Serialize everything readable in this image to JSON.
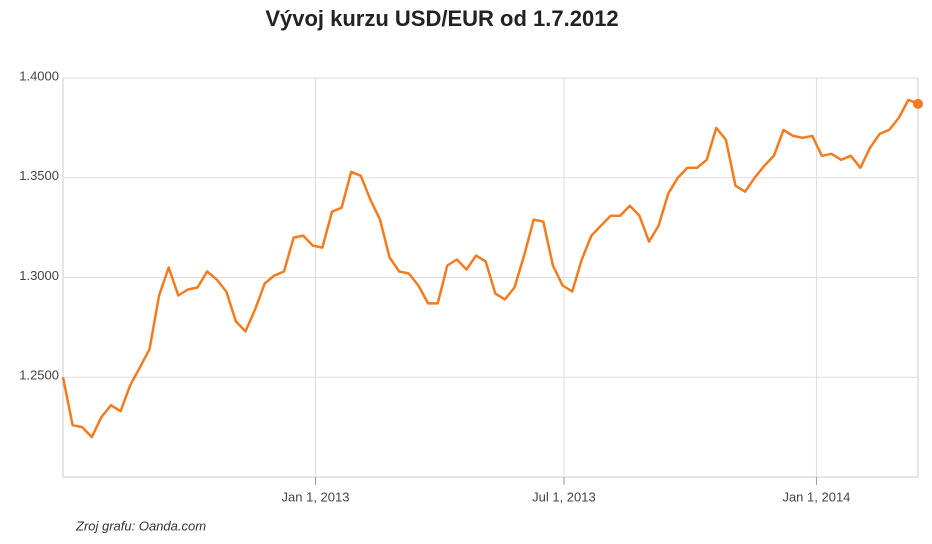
{
  "chart_data": {
    "type": "line",
    "title": "Vývoj kurzu USD/EUR od 1.7.2012",
    "source": "Zroj grafu: Oanda.com",
    "x": [
      "2012-07-01",
      "2012-07-08",
      "2012-07-15",
      "2012-07-22",
      "2012-07-29",
      "2012-08-05",
      "2012-08-12",
      "2012-08-19",
      "2012-08-26",
      "2012-09-02",
      "2012-09-09",
      "2012-09-16",
      "2012-09-23",
      "2012-09-30",
      "2012-10-07",
      "2012-10-14",
      "2012-10-21",
      "2012-10-28",
      "2012-11-04",
      "2012-11-11",
      "2012-11-18",
      "2012-11-25",
      "2012-12-02",
      "2012-12-09",
      "2012-12-16",
      "2012-12-23",
      "2012-12-30",
      "2013-01-06",
      "2013-01-13",
      "2013-01-20",
      "2013-01-27",
      "2013-02-03",
      "2013-02-10",
      "2013-02-17",
      "2013-02-24",
      "2013-03-03",
      "2013-03-10",
      "2013-03-17",
      "2013-03-24",
      "2013-03-31",
      "2013-04-07",
      "2013-04-14",
      "2013-04-21",
      "2013-04-28",
      "2013-05-05",
      "2013-05-12",
      "2013-05-19",
      "2013-05-26",
      "2013-06-02",
      "2013-06-09",
      "2013-06-16",
      "2013-06-23",
      "2013-06-30",
      "2013-07-07",
      "2013-07-14",
      "2013-07-21",
      "2013-07-28",
      "2013-08-04",
      "2013-08-11",
      "2013-08-18",
      "2013-08-25",
      "2013-09-01",
      "2013-09-08",
      "2013-09-15",
      "2013-09-22",
      "2013-09-29",
      "2013-10-06",
      "2013-10-13",
      "2013-10-20",
      "2013-10-27",
      "2013-11-03",
      "2013-11-10",
      "2013-11-17",
      "2013-11-24",
      "2013-12-01",
      "2013-12-08",
      "2013-12-15",
      "2013-12-22",
      "2013-12-29",
      "2014-01-05",
      "2014-01-12",
      "2014-01-19",
      "2014-01-26",
      "2014-02-02",
      "2014-02-09",
      "2014-02-16",
      "2014-02-23",
      "2014-03-02",
      "2014-03-09",
      "2014-03-16"
    ],
    "series": [
      {
        "name": "USD/EUR",
        "color": "#f47b20",
        "values": [
          1.25,
          1.226,
          1.225,
          1.22,
          1.23,
          1.236,
          1.233,
          1.246,
          1.255,
          1.264,
          1.291,
          1.305,
          1.291,
          1.294,
          1.295,
          1.303,
          1.299,
          1.293,
          1.278,
          1.273,
          1.284,
          1.297,
          1.301,
          1.303,
          1.32,
          1.321,
          1.316,
          1.315,
          1.333,
          1.335,
          1.353,
          1.351,
          1.339,
          1.329,
          1.31,
          1.303,
          1.302,
          1.296,
          1.287,
          1.287,
          1.306,
          1.309,
          1.304,
          1.311,
          1.308,
          1.292,
          1.289,
          1.295,
          1.311,
          1.329,
          1.328,
          1.306,
          1.296,
          1.293,
          1.309,
          1.321,
          1.326,
          1.331,
          1.331,
          1.336,
          1.331,
          1.318,
          1.326,
          1.342,
          1.35,
          1.355,
          1.355,
          1.359,
          1.375,
          1.369,
          1.346,
          1.343,
          1.35,
          1.356,
          1.361,
          1.374,
          1.371,
          1.37,
          1.371,
          1.361,
          1.362,
          1.359,
          1.361,
          1.355,
          1.365,
          1.372,
          1.374,
          1.38,
          1.389,
          1.387
        ]
      }
    ],
    "xlim": [
      "2012-07-01",
      "2014-03-16"
    ],
    "xticks": [
      {
        "value": "2013-01-01",
        "label": "Jan 1, 2013"
      },
      {
        "value": "2013-07-01",
        "label": "Jul 1, 2013"
      },
      {
        "value": "2014-01-01",
        "label": "Jan 1, 2014"
      }
    ],
    "ylim": [
      1.2,
      1.4
    ],
    "yticks": [
      {
        "value": 1.25,
        "label": "1.2500"
      },
      {
        "value": 1.3,
        "label": "1.3000"
      },
      {
        "value": 1.35,
        "label": "1.3500"
      },
      {
        "value": 1.4,
        "label": "1.4000"
      }
    ],
    "grid": true
  }
}
